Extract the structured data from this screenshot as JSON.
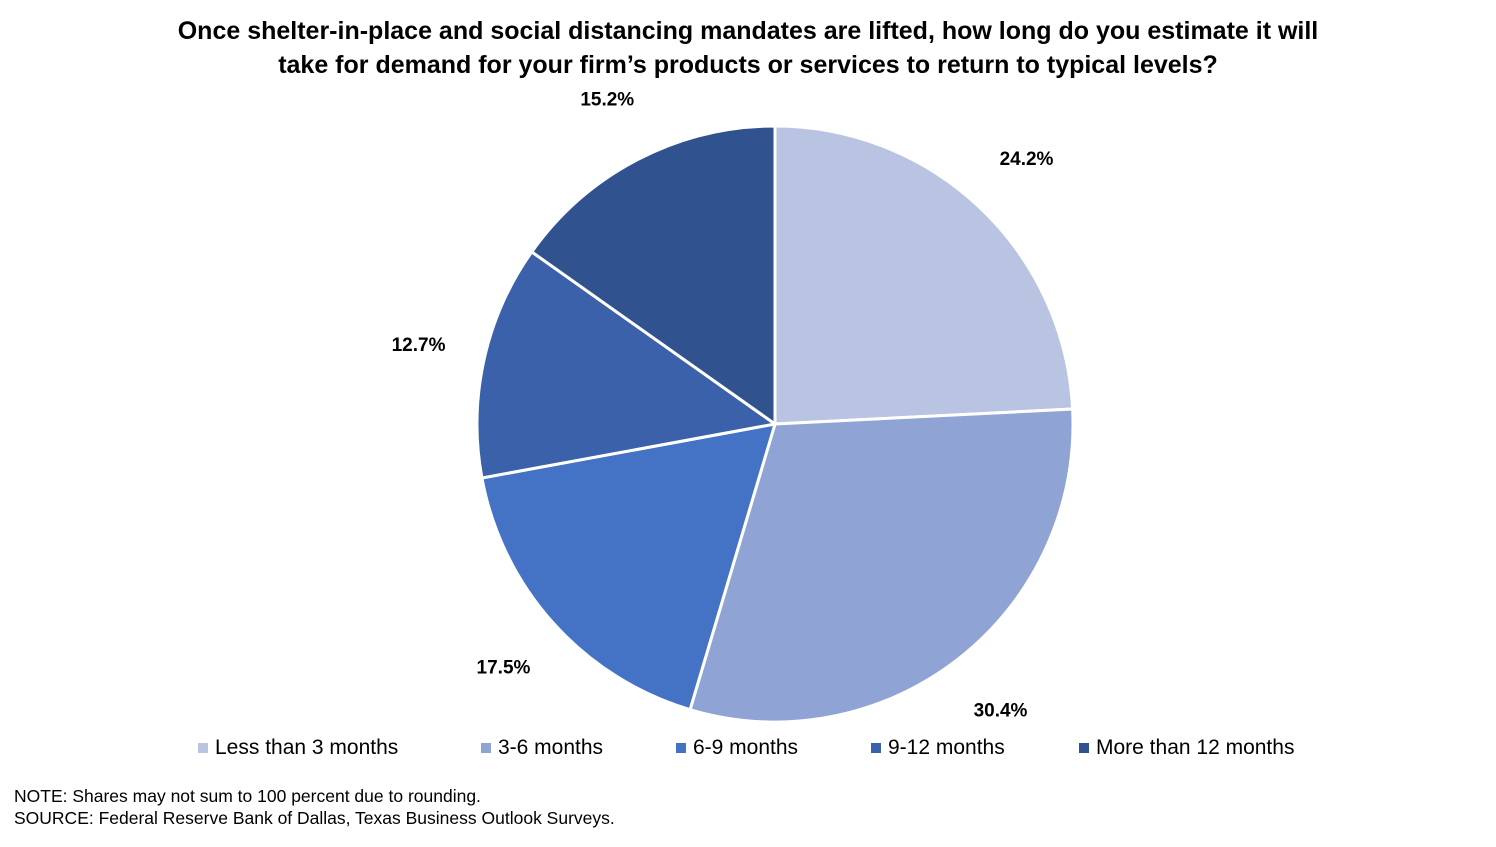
{
  "title_lines": [
    "Once shelter-in-place and social distancing mandates are lifted, how long do you estimate it will",
    "take for demand for your firm’s products or services to return to typical levels?"
  ],
  "chart_data": {
    "type": "pie",
    "title": "Once shelter-in-place and social distancing mandates are lifted, how long do you estimate it will take for demand for your firm’s products or services to return to typical levels?",
    "start_angle": "12 o'clock",
    "direction": "clockwise",
    "slices": [
      {
        "label": "Less than 3 months",
        "value": 24.2,
        "display": "24.2%",
        "color": "#b9c3e2"
      },
      {
        "label": "3-6 months",
        "value": 30.4,
        "display": "30.4%",
        "color": "#8fa4d5"
      },
      {
        "label": "6-9 months",
        "value": 17.5,
        "display": "17.5%",
        "color": "#4472c4"
      },
      {
        "label": "9-12 months",
        "value": 12.7,
        "display": "12.7%",
        "color": "#3a61aa"
      },
      {
        "label": "More than 12 months",
        "value": 15.2,
        "display": "15.2%",
        "color": "#30528f"
      }
    ],
    "legend_position": "bottom"
  },
  "notes": {
    "note": "NOTE: Shares may not sum to 100 percent due to rounding.",
    "source": "SOURCE: Federal Reserve Bank of Dallas, Texas Business Outlook Surveys."
  }
}
